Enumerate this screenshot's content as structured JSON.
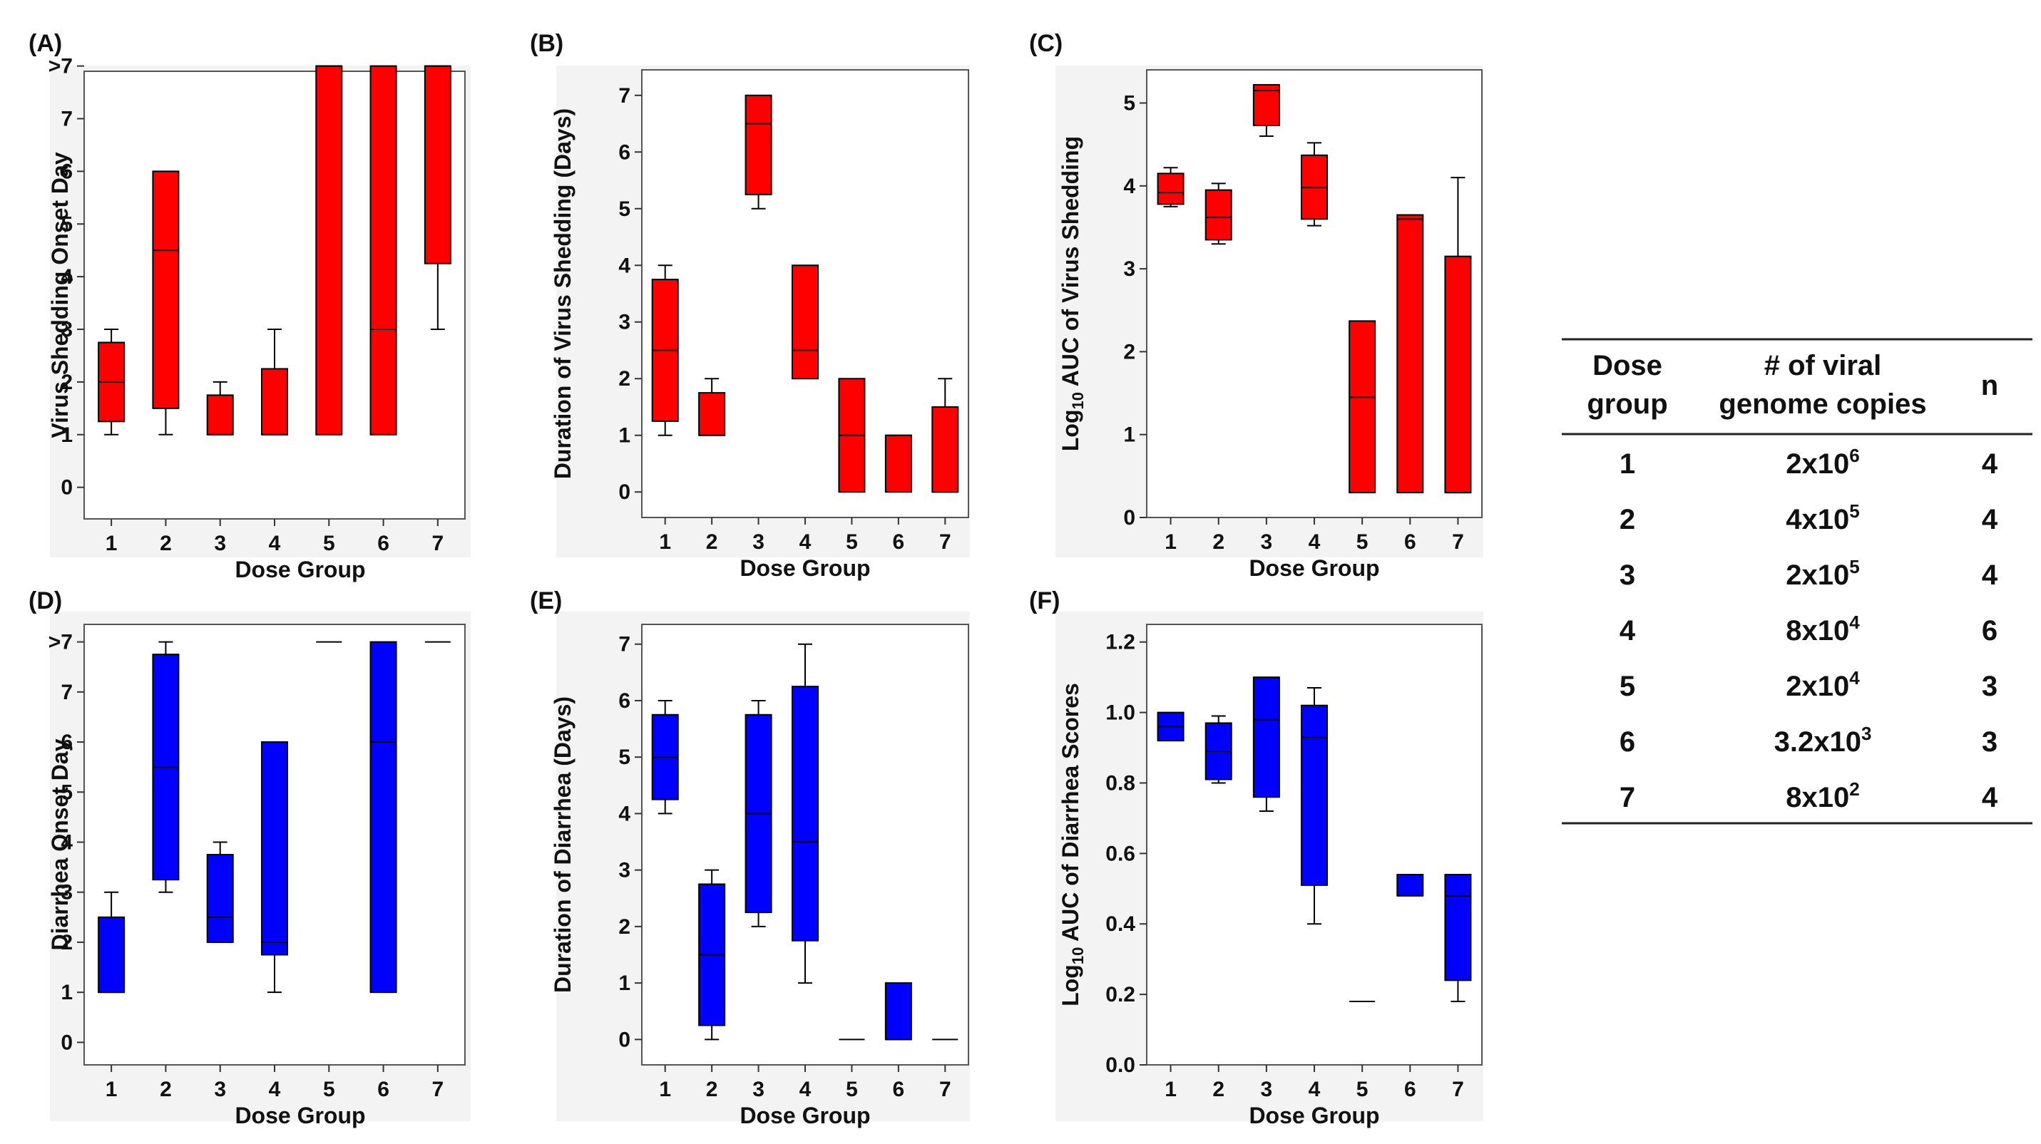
{
  "figure": {
    "colors": {
      "shedding": "#ff0000",
      "diarrhea": "#0000ff",
      "outline": "#000000",
      "panel_bg": "#f3f3f3"
    }
  },
  "chart_data": [
    {
      "id": "A",
      "label": "(A)",
      "type": "box",
      "color": "shedding",
      "title": "",
      "xlabel": "Dose Group",
      "ylabel": "Virus Shedding Onset Day",
      "ylim": [
        -0.6,
        7.9
      ],
      "yticks": [
        {
          "v": 0,
          "t": "0"
        },
        {
          "v": 1,
          "t": "1"
        },
        {
          "v": 2,
          "t": "2"
        },
        {
          "v": 3,
          "t": "3"
        },
        {
          "v": 4,
          "t": "4"
        },
        {
          "v": 5,
          "t": "5"
        },
        {
          "v": 6,
          "t": "6"
        },
        {
          "v": 7,
          "t": "7"
        },
        {
          "v": 8,
          "t": ">7"
        }
      ],
      "categories": [
        "1",
        "2",
        "3",
        "4",
        "5",
        "6",
        "7"
      ],
      "boxes": [
        {
          "min": 1,
          "q1": 1.25,
          "median": 2,
          "q3": 2.75,
          "max": 3
        },
        {
          "min": 1,
          "q1": 1.5,
          "median": 4.5,
          "q3": 6,
          "max": 6
        },
        {
          "min": 1,
          "q1": 1,
          "median": 1,
          "q3": 1.75,
          "max": 2
        },
        {
          "min": 1,
          "q1": 1,
          "median": 1,
          "q3": 2.25,
          "max": 3
        },
        {
          "min": 1,
          "q1": 1,
          "median": 8,
          "q3": 8,
          "max": 8
        },
        {
          "min": 1,
          "q1": 1,
          "median": 3,
          "q3": 8,
          "max": 8
        },
        {
          "min": 3,
          "q1": 4.25,
          "median": 8,
          "q3": 8,
          "max": 8
        }
      ]
    },
    {
      "id": "B",
      "label": "(B)",
      "type": "box",
      "color": "shedding",
      "title": "",
      "xlabel": "Dose Group",
      "ylabel": "Duration of Virus Shedding (Days)",
      "ylim": [
        -0.45,
        7.45
      ],
      "yticks": [
        {
          "v": 0,
          "t": "0"
        },
        {
          "v": 1,
          "t": "1"
        },
        {
          "v": 2,
          "t": "2"
        },
        {
          "v": 3,
          "t": "3"
        },
        {
          "v": 4,
          "t": "4"
        },
        {
          "v": 5,
          "t": "5"
        },
        {
          "v": 6,
          "t": "6"
        },
        {
          "v": 7,
          "t": "7"
        }
      ],
      "categories": [
        "1",
        "2",
        "3",
        "4",
        "5",
        "6",
        "7"
      ],
      "boxes": [
        {
          "min": 1,
          "q1": 1.25,
          "median": 2.5,
          "q3": 3.75,
          "max": 4
        },
        {
          "min": 1,
          "q1": 1,
          "median": 1,
          "q3": 1.75,
          "max": 2
        },
        {
          "min": 5,
          "q1": 5.25,
          "median": 6.5,
          "q3": 7,
          "max": 7
        },
        {
          "min": 2,
          "q1": 2,
          "median": 2.5,
          "q3": 4,
          "max": 4
        },
        {
          "min": 0,
          "q1": 0,
          "median": 1,
          "q3": 2,
          "max": 2
        },
        {
          "min": 0,
          "q1": 0,
          "median": 1,
          "q3": 1,
          "max": 1
        },
        {
          "min": 0,
          "q1": 0,
          "median": 0,
          "q3": 1.5,
          "max": 2
        }
      ]
    },
    {
      "id": "C",
      "label": "(C)",
      "type": "box",
      "color": "shedding",
      "title": "",
      "xlabel": "Dose Group",
      "ylabel": "Log10 AUC of Virus Shedding",
      "ylabel_parts": {
        "pre": "Log",
        "sub": "10",
        "post": " AUC of Virus Shedding"
      },
      "ylim": [
        0,
        5.4
      ],
      "yticks": [
        {
          "v": 0,
          "t": "0"
        },
        {
          "v": 1,
          "t": "1"
        },
        {
          "v": 2,
          "t": "2"
        },
        {
          "v": 3,
          "t": "3"
        },
        {
          "v": 4,
          "t": "4"
        },
        {
          "v": 5,
          "t": "5"
        }
      ],
      "categories": [
        "1",
        "2",
        "3",
        "4",
        "5",
        "6",
        "7"
      ],
      "boxes": [
        {
          "min": 3.75,
          "q1": 3.78,
          "median": 3.92,
          "q3": 4.15,
          "max": 4.22
        },
        {
          "min": 3.3,
          "q1": 3.35,
          "median": 3.62,
          "q3": 3.95,
          "max": 4.03
        },
        {
          "min": 4.6,
          "q1": 4.73,
          "median": 5.15,
          "q3": 5.22,
          "max": 5.22
        },
        {
          "min": 3.52,
          "q1": 3.6,
          "median": 3.98,
          "q3": 4.37,
          "max": 4.52
        },
        {
          "min": 0.3,
          "q1": 0.3,
          "median": 1.45,
          "q3": 2.37,
          "max": 2.37
        },
        {
          "min": 0.3,
          "q1": 0.3,
          "median": 3.6,
          "q3": 3.65,
          "max": 3.65
        },
        {
          "min": 0.3,
          "q1": 0.3,
          "median": 0.3,
          "q3": 3.15,
          "max": 4.1
        }
      ]
    },
    {
      "id": "D",
      "label": "(D)",
      "type": "box",
      "color": "diarrhea",
      "title": "",
      "xlabel": "Dose Group",
      "ylabel": "Diarrhea Onset Day",
      "ylim": [
        -0.45,
        8.35
      ],
      "yticks": [
        {
          "v": 0,
          "t": "0"
        },
        {
          "v": 1,
          "t": "1"
        },
        {
          "v": 2,
          "t": "2"
        },
        {
          "v": 3,
          "t": "3"
        },
        {
          "v": 4,
          "t": "4"
        },
        {
          "v": 5,
          "t": "5"
        },
        {
          "v": 6,
          "t": "6"
        },
        {
          "v": 7,
          "t": "7"
        },
        {
          "v": 8,
          "t": ">7"
        }
      ],
      "categories": [
        "1",
        "2",
        "3",
        "4",
        "5",
        "6",
        "7"
      ],
      "boxes": [
        {
          "min": 1,
          "q1": 1,
          "median": 1,
          "q3": 2.5,
          "max": 3
        },
        {
          "min": 3,
          "q1": 3.25,
          "median": 5.5,
          "q3": 7.75,
          "max": 8
        },
        {
          "min": 2,
          "q1": 2,
          "median": 2.5,
          "q3": 3.75,
          "max": 4
        },
        {
          "min": 1,
          "q1": 1.75,
          "median": 2,
          "q3": 6,
          "max": 6
        },
        {
          "min": 8,
          "q1": 8,
          "median": 8,
          "q3": 8,
          "max": 8
        },
        {
          "min": 1,
          "q1": 1,
          "median": 6,
          "q3": 8,
          "max": 8
        },
        {
          "min": 8,
          "q1": 8,
          "median": 8,
          "q3": 8,
          "max": 8
        }
      ]
    },
    {
      "id": "E",
      "label": "(E)",
      "type": "box",
      "color": "diarrhea",
      "title": "",
      "xlabel": "Dose Group",
      "ylabel": "Duration of Diarrhea (Days)",
      "ylim": [
        -0.45,
        7.35
      ],
      "yticks": [
        {
          "v": 0,
          "t": "0"
        },
        {
          "v": 1,
          "t": "1"
        },
        {
          "v": 2,
          "t": "2"
        },
        {
          "v": 3,
          "t": "3"
        },
        {
          "v": 4,
          "t": "4"
        },
        {
          "v": 5,
          "t": "5"
        },
        {
          "v": 6,
          "t": "6"
        },
        {
          "v": 7,
          "t": "7"
        }
      ],
      "categories": [
        "1",
        "2",
        "3",
        "4",
        "5",
        "6",
        "7"
      ],
      "boxes": [
        {
          "min": 4,
          "q1": 4.25,
          "median": 5,
          "q3": 5.75,
          "max": 6
        },
        {
          "min": 0,
          "q1": 0.25,
          "median": 1.5,
          "q3": 2.75,
          "max": 3
        },
        {
          "min": 2,
          "q1": 2.25,
          "median": 4,
          "q3": 5.75,
          "max": 6
        },
        {
          "min": 1,
          "q1": 1.75,
          "median": 3.5,
          "q3": 6.25,
          "max": 7
        },
        {
          "min": 0,
          "q1": 0,
          "median": 0,
          "q3": 0,
          "max": 0
        },
        {
          "min": 0,
          "q1": 0,
          "median": 0,
          "q3": 1,
          "max": 1
        },
        {
          "min": 0,
          "q1": 0,
          "median": 0,
          "q3": 0,
          "max": 0
        }
      ]
    },
    {
      "id": "F",
      "label": "(F)",
      "type": "box",
      "color": "diarrhea",
      "title": "",
      "xlabel": "Dose Group",
      "ylabel": "Log10 AUC of Diarrhea Scores",
      "ylabel_parts": {
        "pre": "Log",
        "sub": "10",
        "post": " AUC of Diarrhea Scores"
      },
      "ylim": [
        0,
        1.25
      ],
      "yticks": [
        {
          "v": 0,
          "t": "0.0"
        },
        {
          "v": 0.2,
          "t": "0.2"
        },
        {
          "v": 0.4,
          "t": "0.4"
        },
        {
          "v": 0.6,
          "t": "0.6"
        },
        {
          "v": 0.8,
          "t": "0.8"
        },
        {
          "v": 1.0,
          "t": "1.0"
        },
        {
          "v": 1.2,
          "t": "1.2"
        }
      ],
      "categories": [
        "1",
        "2",
        "3",
        "4",
        "5",
        "6",
        "7"
      ],
      "boxes": [
        {
          "min": 0.92,
          "q1": 0.92,
          "median": 0.96,
          "q3": 1.0,
          "max": 1.0
        },
        {
          "min": 0.8,
          "q1": 0.81,
          "median": 0.89,
          "q3": 0.97,
          "max": 0.99
        },
        {
          "min": 0.72,
          "q1": 0.76,
          "median": 0.98,
          "q3": 1.1,
          "max": 1.1
        },
        {
          "min": 0.4,
          "q1": 0.51,
          "median": 0.93,
          "q3": 1.02,
          "max": 1.07
        },
        {
          "min": 0.18,
          "q1": 0.18,
          "median": 0.18,
          "q3": 0.18,
          "max": 0.18
        },
        {
          "min": 0.48,
          "q1": 0.48,
          "median": 0.48,
          "q3": 0.54,
          "max": 0.54
        },
        {
          "min": 0.18,
          "q1": 0.24,
          "median": 0.48,
          "q3": 0.54,
          "max": 0.54
        }
      ]
    }
  ],
  "dose_table": {
    "headers": [
      {
        "line1": "Dose",
        "line2": "group"
      },
      {
        "line1": "# of viral",
        "line2": "genome copies"
      },
      {
        "line1": "n",
        "line2": ""
      }
    ],
    "rows": [
      {
        "group": "1",
        "base": "2x10",
        "exp": "6",
        "n": "4"
      },
      {
        "group": "2",
        "base": "4x10",
        "exp": "5",
        "n": "4"
      },
      {
        "group": "3",
        "base": "2x10",
        "exp": "5",
        "n": "4"
      },
      {
        "group": "4",
        "base": "8x10",
        "exp": "4",
        "n": "6"
      },
      {
        "group": "5",
        "base": "2x10",
        "exp": "4",
        "n": "3"
      },
      {
        "group": "6",
        "base": "3.2x10",
        "exp": "3",
        "n": "3"
      },
      {
        "group": "7",
        "base": "8x10",
        "exp": "2",
        "n": "4"
      }
    ]
  }
}
